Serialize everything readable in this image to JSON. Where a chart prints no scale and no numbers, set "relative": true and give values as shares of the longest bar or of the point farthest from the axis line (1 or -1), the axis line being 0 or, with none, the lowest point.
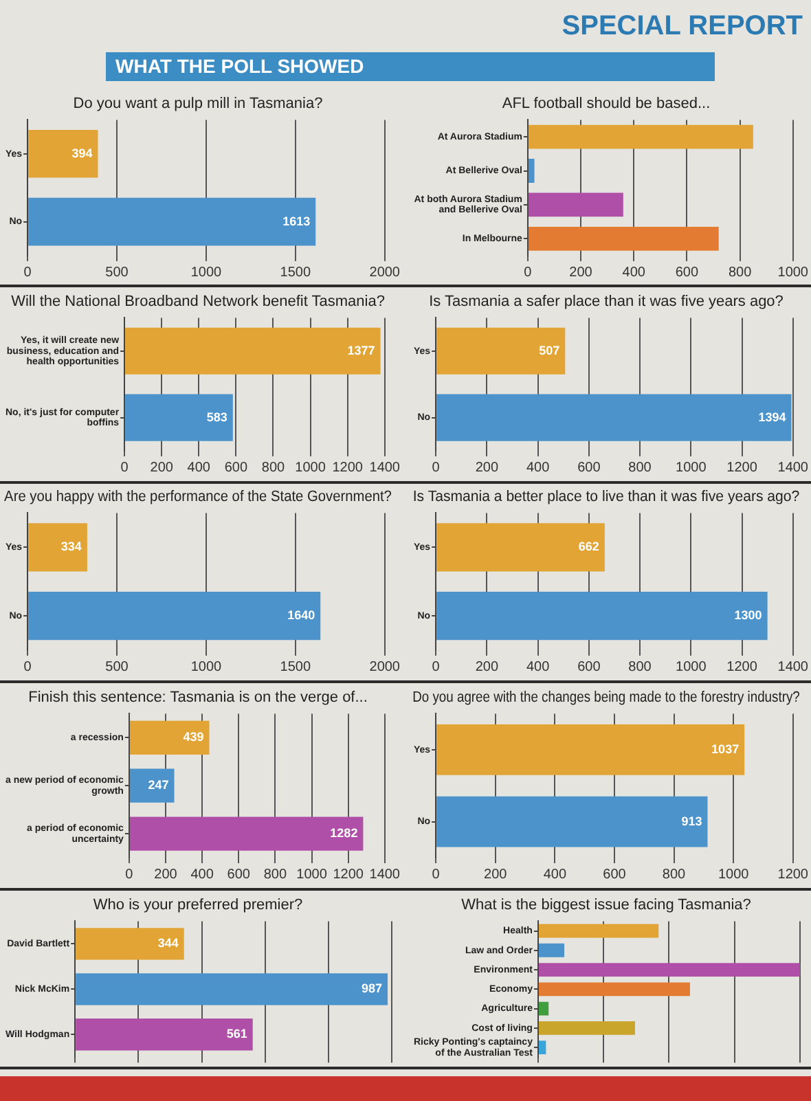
{
  "chart_data": [
    {
      "type": "other",
      "title": "WHAT THE POLL SHOWED",
      "annotations": [
        "SPECIAL REPORT"
      ]
    },
    {
      "type": "bar",
      "orientation": "horizontal",
      "title": "Do you want a pulp mill in Tasmania?",
      "categories": [
        "Yes",
        "No"
      ],
      "values": [
        394,
        1613
      ],
      "colors": [
        "#e2a535",
        "#4b93ca"
      ],
      "xlim": [
        0,
        2000
      ],
      "xticks": [
        0,
        500,
        1000,
        1500,
        2000
      ],
      "grid": "x",
      "data_labels": true
    },
    {
      "type": "bar",
      "orientation": "horizontal",
      "title": "AFL football should be based...",
      "categories": [
        "At Aurora Stadium",
        "At Bellerive Oval",
        "At both Aurora Stadium and Bellerive Oval",
        "In Melbourne"
      ],
      "values": [
        850,
        25,
        360,
        720
      ],
      "colors": [
        "#e2a535",
        "#4b93ca",
        "#b04fa7",
        "#e47b33"
      ],
      "xlim": [
        0,
        1000
      ],
      "xticks": [
        0,
        200,
        400,
        600,
        800,
        1000
      ],
      "grid": "x"
    },
    {
      "type": "bar",
      "orientation": "horizontal",
      "title": "Will the National Broadband Network benefit Tasmania?",
      "categories": [
        "Yes, it will create new business, education and health opportunities",
        "No, it's just for computer boffins"
      ],
      "values": [
        1377,
        583
      ],
      "colors": [
        "#e2a535",
        "#4b93ca"
      ],
      "xlim": [
        0,
        1400
      ],
      "xticks": [
        0,
        200,
        400,
        600,
        800,
        1000,
        1200,
        1400
      ],
      "grid": "x",
      "data_labels": true
    },
    {
      "type": "bar",
      "orientation": "horizontal",
      "title": "Is Tasmania a safer place than it was five years ago?",
      "categories": [
        "Yes",
        "No"
      ],
      "values": [
        507,
        1394
      ],
      "colors": [
        "#e2a535",
        "#4b93ca"
      ],
      "xlim": [
        0,
        1400
      ],
      "xticks": [
        0,
        200,
        400,
        600,
        800,
        1000,
        1200,
        1400
      ],
      "grid": "x",
      "data_labels": true
    },
    {
      "type": "bar",
      "orientation": "horizontal",
      "title": "Are you happy with the performance of the State Government?",
      "categories": [
        "Yes",
        "No"
      ],
      "values": [
        334,
        1640
      ],
      "colors": [
        "#e2a535",
        "#4b93ca"
      ],
      "xlim": [
        0,
        2000
      ],
      "xticks": [
        0,
        500,
        1000,
        1500,
        2000
      ],
      "grid": "x",
      "data_labels": true
    },
    {
      "type": "bar",
      "orientation": "horizontal",
      "title": "Is Tasmania a better place to live than it was five years ago?",
      "categories": [
        "Yes",
        "No"
      ],
      "values": [
        662,
        1300
      ],
      "colors": [
        "#e2a535",
        "#4b93ca"
      ],
      "xlim": [
        0,
        1400
      ],
      "xticks": [
        0,
        200,
        400,
        600,
        800,
        1000,
        1200,
        1400
      ],
      "grid": "x",
      "data_labels": true
    },
    {
      "type": "bar",
      "orientation": "horizontal",
      "title": "Finish this sentence: Tasmania is on the verge of...",
      "categories": [
        "a recession",
        "a new period of economic growth",
        "a period of economic uncertainty"
      ],
      "values": [
        439,
        247,
        1282
      ],
      "colors": [
        "#e2a535",
        "#4b93ca",
        "#b04fa7"
      ],
      "xlim": [
        0,
        1400
      ],
      "xticks": [
        0,
        200,
        400,
        600,
        800,
        1000,
        1200,
        1400
      ],
      "grid": "x",
      "data_labels": true
    },
    {
      "type": "bar",
      "orientation": "horizontal",
      "title": "Do you agree with the changes being made to the forestry industry?",
      "categories": [
        "Yes",
        "No"
      ],
      "values": [
        1037,
        913
      ],
      "colors": [
        "#e2a535",
        "#4b93ca"
      ],
      "xlim": [
        0,
        1200
      ],
      "xticks": [
        0,
        200,
        400,
        600,
        800,
        1000,
        1200
      ],
      "grid": "x",
      "data_labels": true
    },
    {
      "type": "bar",
      "orientation": "horizontal",
      "title": "Who is your preferred premier?",
      "categories": [
        "David Bartlett",
        "Nick McKim",
        "Will Hodgman"
      ],
      "values": [
        344,
        987,
        561
      ],
      "colors": [
        "#e2a535",
        "#4b93ca",
        "#b04fa7"
      ],
      "tick_labels": "y",
      "grid": "x",
      "data_labels": true
    },
    {
      "type": "bar",
      "orientation": "horizontal",
      "title": "What is the biggest issue facing Tasmania?",
      "categories": [
        "Health",
        "Law and Order",
        "Environment",
        "Economy",
        "Agriculture",
        "Cost of living",
        "Ricky Ponting's captaincy of the Australian Test"
      ],
      "values": [
        0.46,
        0.1,
        1,
        0.58,
        0.04,
        0.37,
        0.03
      ],
      "colors": [
        "#e2a535",
        "#4b93ca",
        "#b04fa7",
        "#e47b33",
        "#3f9e3d",
        "#c9a52c",
        "#3aa5d8"
      ],
      "relative": true,
      "tick_labels": "y",
      "grid": "x"
    }
  ]
}
